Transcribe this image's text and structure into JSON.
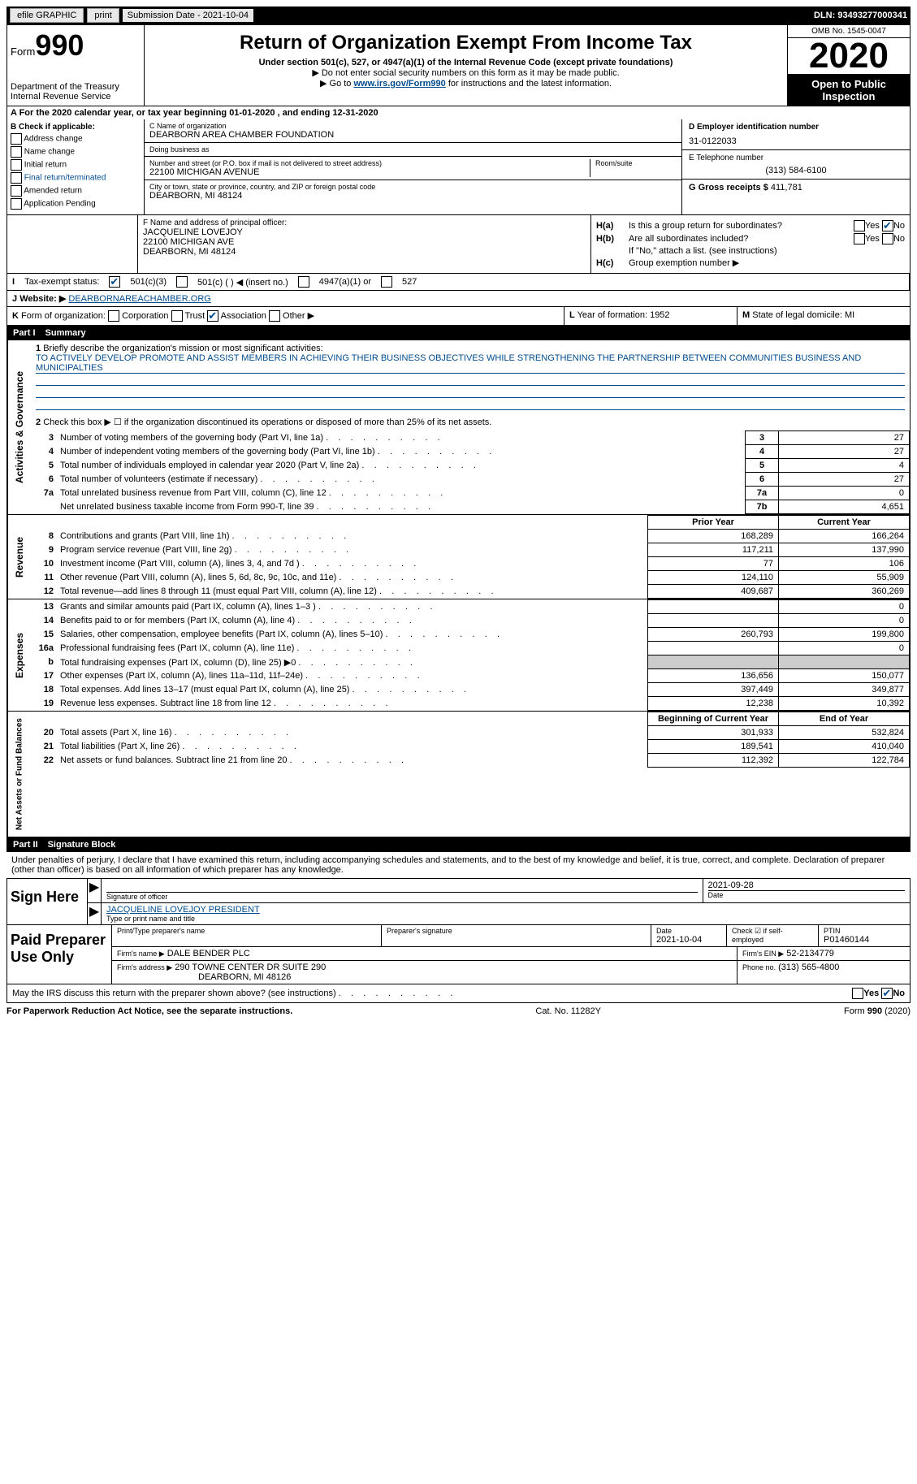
{
  "topbar": {
    "efile": "efile GRAPHIC",
    "print": "print",
    "submission": "Submission Date - 2021-10-04",
    "dln": "DLN: 93493277000341"
  },
  "header": {
    "form_prefix": "Form",
    "form_num": "990",
    "dept": "Department of the Treasury\nInternal Revenue Service",
    "title": "Return of Organization Exempt From Income Tax",
    "subtitle": "Under section 501(c), 527, or 4947(a)(1) of the Internal Revenue Code (except private foundations)",
    "note1": "▶ Do not enter social security numbers on this form as it may be made public.",
    "note2_pre": "▶ Go to ",
    "note2_link": "www.irs.gov/Form990",
    "note2_post": " for instructions and the latest information.",
    "omb": "OMB No. 1545-0047",
    "year": "2020",
    "open": "Open to Public\nInspection"
  },
  "taxyear": "A For the 2020 calendar year, or tax year beginning 01-01-2020   , and ending 12-31-2020",
  "boxB": {
    "title": "B Check if applicable:",
    "items": [
      "Address change",
      "Name change",
      "Initial return",
      "Final return/terminated",
      "Amended return",
      "Application Pending"
    ]
  },
  "boxC": {
    "name_label": "C Name of organization",
    "name": "DEARBORN AREA CHAMBER FOUNDATION",
    "dba_label": "Doing business as",
    "dba": "",
    "addr_label": "Number and street (or P.O. box if mail is not delivered to street address)",
    "room_label": "Room/suite",
    "addr": "22100 MICHIGAN AVENUE",
    "city_label": "City or town, state or province, country, and ZIP or foreign postal code",
    "city": "DEARBORN, MI  48124"
  },
  "boxD": {
    "label": "D Employer identification number",
    "ein": "31-0122033"
  },
  "boxE": {
    "label": "E Telephone number",
    "phone": "(313) 584-6100"
  },
  "boxG": {
    "label": "G Gross receipts $",
    "amount": "411,781"
  },
  "boxF": {
    "label": "F Name and address of principal officer:",
    "name": "JACQUELINE LOVEJOY",
    "addr1": "22100 MICHIGAN AVE",
    "addr2": "DEARBORN, MI  48124"
  },
  "boxH": {
    "ha_label": "H(a)",
    "ha_text": "Is this a group return for subordinates?",
    "ha_yes": "Yes",
    "ha_no": "No",
    "hb_label": "H(b)",
    "hb_text": "Are all subordinates included?",
    "hb_note": "If \"No,\" attach a list. (see instructions)",
    "hc_label": "H(c)",
    "hc_text": "Group exemption number ▶"
  },
  "rowI": {
    "label": "I",
    "text": "Tax-exempt status:",
    "opt1": "501(c)(3)",
    "opt2": "501(c) (  ) ◀ (insert no.)",
    "opt3": "4947(a)(1) or",
    "opt4": "527"
  },
  "rowJ": {
    "label": "J",
    "text": "Website: ▶",
    "url": "DEARBORNAREACHAMBER.ORG"
  },
  "rowK": {
    "label": "K",
    "text": "Form of organization:",
    "opts": [
      "Corporation",
      "Trust",
      "Association",
      "Other ▶"
    ]
  },
  "rowL": {
    "label": "L",
    "text": "Year of formation: 1952"
  },
  "rowM": {
    "label": "M",
    "text": "State of legal domicile: MI"
  },
  "part1": {
    "num": "Part I",
    "title": "Summary"
  },
  "summary": {
    "q1_label": "1",
    "q1_text": "Briefly describe the organization's mission or most significant activities:",
    "q1_answer": "TO ACTIVELY DEVELOP PROMOTE AND ASSIST MEMBERS IN ACHIEVING THEIR BUSINESS OBJECTIVES WHILE STRENGTHENING THE PARTNERSHIP BETWEEN COMMUNITIES BUSINESS AND MUNICIPALTIES",
    "q2_label": "2",
    "q2_text": "Check this box ▶ ☐ if the organization discontinued its operations or disposed of more than 25% of its net assets.",
    "rows": [
      {
        "n": "3",
        "desc": "Number of voting members of the governing body (Part VI, line 1a)",
        "box": "3",
        "val": "27"
      },
      {
        "n": "4",
        "desc": "Number of independent voting members of the governing body (Part VI, line 1b)",
        "box": "4",
        "val": "27"
      },
      {
        "n": "5",
        "desc": "Total number of individuals employed in calendar year 2020 (Part V, line 2a)",
        "box": "5",
        "val": "4"
      },
      {
        "n": "6",
        "desc": "Total number of volunteers (estimate if necessary)",
        "box": "6",
        "val": "27"
      },
      {
        "n": "7a",
        "desc": "Total unrelated business revenue from Part VIII, column (C), line 12",
        "box": "7a",
        "val": "0"
      },
      {
        "n": "",
        "desc": "Net unrelated business taxable income from Form 990-T, line 39",
        "box": "7b",
        "val": "4,651"
      }
    ],
    "col1_head": "Prior Year",
    "col2_head": "Current Year"
  },
  "revenue": {
    "vtab": "Revenue",
    "rows": [
      {
        "n": "8",
        "desc": "Contributions and grants (Part VIII, line 1h)",
        "v1": "168,289",
        "v2": "166,264"
      },
      {
        "n": "9",
        "desc": "Program service revenue (Part VIII, line 2g)",
        "v1": "117,211",
        "v2": "137,990"
      },
      {
        "n": "10",
        "desc": "Investment income (Part VIII, column (A), lines 3, 4, and 7d )",
        "v1": "77",
        "v2": "106"
      },
      {
        "n": "11",
        "desc": "Other revenue (Part VIII, column (A), lines 5, 6d, 8c, 9c, 10c, and 11e)",
        "v1": "124,110",
        "v2": "55,909"
      },
      {
        "n": "12",
        "desc": "Total revenue—add lines 8 through 11 (must equal Part VIII, column (A), line 12)",
        "v1": "409,687",
        "v2": "360,269"
      }
    ]
  },
  "expenses": {
    "vtab": "Expenses",
    "rows": [
      {
        "n": "13",
        "desc": "Grants and similar amounts paid (Part IX, column (A), lines 1–3 )",
        "v1": "",
        "v2": "0"
      },
      {
        "n": "14",
        "desc": "Benefits paid to or for members (Part IX, column (A), line 4)",
        "v1": "",
        "v2": "0"
      },
      {
        "n": "15",
        "desc": "Salaries, other compensation, employee benefits (Part IX, column (A), lines 5–10)",
        "v1": "260,793",
        "v2": "199,800"
      },
      {
        "n": "16a",
        "desc": "Professional fundraising fees (Part IX, column (A), line 11e)",
        "v1": "",
        "v2": "0"
      },
      {
        "n": "b",
        "desc": "Total fundraising expenses (Part IX, column (D), line 25) ▶0",
        "v1": "shaded",
        "v2": "shaded"
      },
      {
        "n": "17",
        "desc": "Other expenses (Part IX, column (A), lines 11a–11d, 11f–24e)",
        "v1": "136,656",
        "v2": "150,077"
      },
      {
        "n": "18",
        "desc": "Total expenses. Add lines 13–17 (must equal Part IX, column (A), line 25)",
        "v1": "397,449",
        "v2": "349,877"
      },
      {
        "n": "19",
        "desc": "Revenue less expenses. Subtract line 18 from line 12",
        "v1": "12,238",
        "v2": "10,392"
      }
    ]
  },
  "netassets": {
    "vtab": "Net Assets or Fund Balances",
    "col1_head": "Beginning of Current Year",
    "col2_head": "End of Year",
    "rows": [
      {
        "n": "20",
        "desc": "Total assets (Part X, line 16)",
        "v1": "301,933",
        "v2": "532,824"
      },
      {
        "n": "21",
        "desc": "Total liabilities (Part X, line 26)",
        "v1": "189,541",
        "v2": "410,040"
      },
      {
        "n": "22",
        "desc": "Net assets or fund balances. Subtract line 21 from line 20",
        "v1": "112,392",
        "v2": "122,784"
      }
    ]
  },
  "part2": {
    "num": "Part II",
    "title": "Signature Block"
  },
  "sig": {
    "declaration": "Under penalties of perjury, I declare that I have examined this return, including accompanying schedules and statements, and to the best of my knowledge and belief, it is true, correct, and complete. Declaration of preparer (other than officer) is based on all information of which preparer has any knowledge.",
    "sign_here": "Sign Here",
    "sig_label": "Signature of officer",
    "date_label": "Date",
    "date": "2021-09-28",
    "name": "JACQUELINE LOVEJOY PRESIDENT",
    "name_label": "Type or print name and title"
  },
  "prep": {
    "title": "Paid Preparer Use Only",
    "h1": "Print/Type preparer's name",
    "h2": "Preparer's signature",
    "h3": "Date",
    "h3v": "2021-10-04",
    "h4": "Check ☑ if self-employed",
    "h5": "PTIN",
    "h5v": "P01460144",
    "firm_label": "Firm's name    ▶",
    "firm": "DALE BENDER PLC",
    "ein_label": "Firm's EIN ▶",
    "ein": "52-2134779",
    "addr_label": "Firm's address ▶",
    "addr": "290 TOWNE CENTER DR SUITE 290",
    "addr2": "DEARBORN, MI  48126",
    "phone_label": "Phone no.",
    "phone": "(313) 565-4800"
  },
  "discuss": {
    "text": "May the IRS discuss this return with the preparer shown above? (see instructions)",
    "yes": "Yes",
    "no": "No"
  },
  "footer": {
    "left": "For Paperwork Reduction Act Notice, see the separate instructions.",
    "mid": "Cat. No. 11282Y",
    "right_pre": "Form ",
    "right_b": "990",
    "right_post": " (2020)"
  },
  "gov_vtab": "Activities & Governance"
}
